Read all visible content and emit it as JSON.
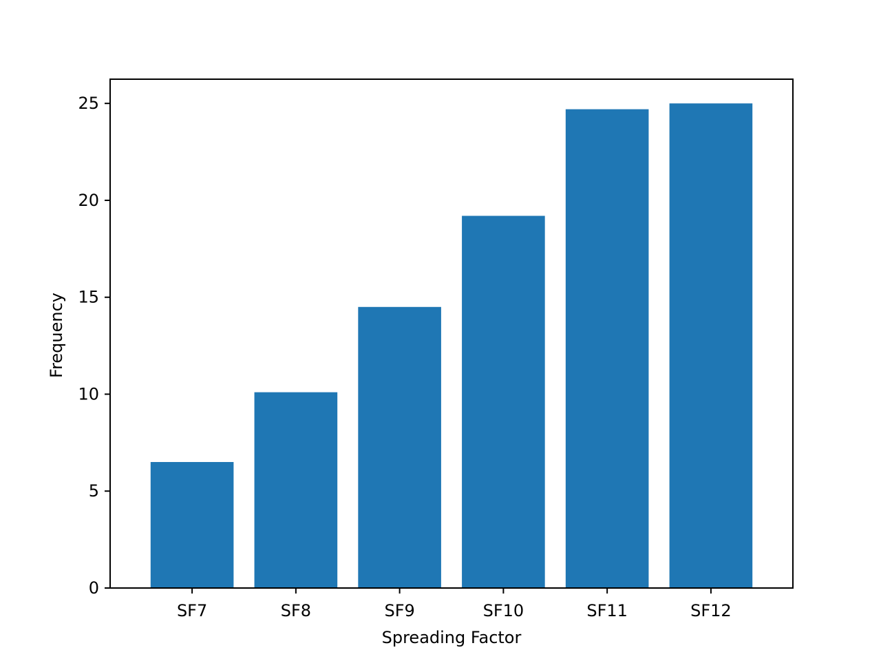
{
  "chart_data": {
    "type": "bar",
    "categories": [
      "SF7",
      "SF8",
      "SF9",
      "SF10",
      "SF11",
      "SF12"
    ],
    "values": [
      6.5,
      10.1,
      14.5,
      19.2,
      24.7,
      25.0
    ],
    "xlabel": "Spreading Factor",
    "ylabel": "Frequency",
    "ylim": [
      0,
      26.25
    ],
    "yticks": [
      0,
      5,
      10,
      15,
      20,
      25
    ],
    "grid": false,
    "bar_color": "#1f77b4"
  }
}
